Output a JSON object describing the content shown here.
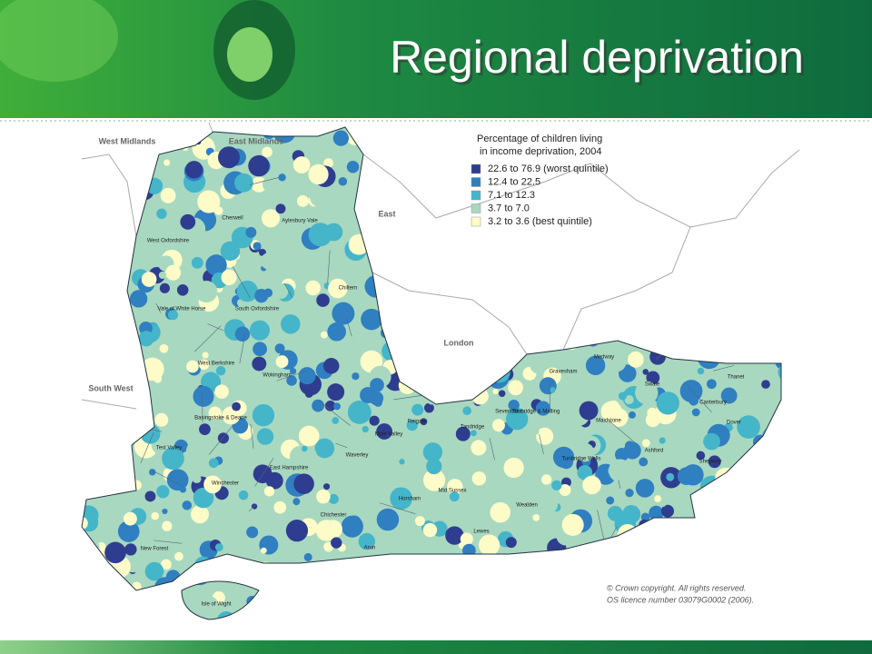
{
  "header": {
    "title": "Regional deprivation"
  },
  "legend": {
    "title_lines": [
      "Percentage of children living",
      "in income deprivation, 2004"
    ],
    "items": [
      {
        "label": "22.6 to 76.9 (worst quintile)",
        "color": "#2e3d8f"
      },
      {
        "label": "12.4 to 22.5",
        "color": "#2f7fc1"
      },
      {
        "label": "7.1 to 12.3",
        "color": "#45b5c9"
      },
      {
        "label": "3.7 to  7.0",
        "color": "#a8d8c0"
      },
      {
        "label": "3.2 to 3.6 (best quintile)",
        "color": "#fdfbc8"
      }
    ]
  },
  "regions": [
    "West Midlands",
    "East Midlands",
    "East",
    "London",
    "South West"
  ],
  "districts": [
    "Cherwell",
    "Aylesbury Vale",
    "West Oxfordshire",
    "Vale of White Horse",
    "South Oxfordshire",
    "West Berkshire",
    "Wokingham",
    "Chiltern",
    "Basingstoke & Deane",
    "Test Valley",
    "Winchester",
    "East Hampshire",
    "New Forest",
    "Isle of Wight",
    "Chichester",
    "Waverley",
    "Mole Valley",
    "Reigate",
    "Tandridge",
    "Horsham",
    "Mid Sussex",
    "Sevenoaks",
    "Tonbridge & Malling",
    "Wealden",
    "Lewes",
    "Arun",
    "Tunbridge Wells",
    "Maidstone",
    "Gravesham",
    "Medway",
    "Swale",
    "Thanet",
    "Canterbury",
    "Dover",
    "Ashford",
    "Shepway"
  ],
  "copyright": [
    "© Crown copyright. All rights reserved.",
    "OS licence number 03079G0002 (2006)."
  ]
}
